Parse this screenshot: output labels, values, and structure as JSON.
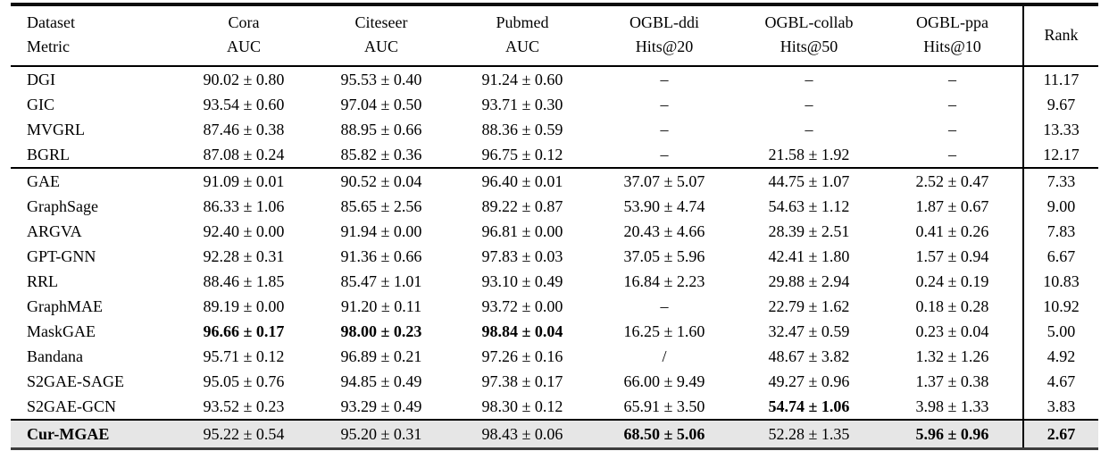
{
  "table": {
    "header": {
      "corner_line1": "Dataset",
      "corner_line2": "Metric",
      "columns": [
        {
          "dataset": "Cora",
          "metric": "AUC"
        },
        {
          "dataset": "Citeseer",
          "metric": "AUC"
        },
        {
          "dataset": "Pubmed",
          "metric": "AUC"
        },
        {
          "dataset": "OGBL-ddi",
          "metric": "Hits@20"
        },
        {
          "dataset": "OGBL-collab",
          "metric": "Hits@50"
        },
        {
          "dataset": "OGBL-ppa",
          "metric": "Hits@10"
        }
      ],
      "rank_label": "Rank"
    },
    "missing_marker": "–",
    "rows": [
      {
        "method": "DGI",
        "values": [
          "90.02 ± 0.80",
          "95.53 ± 0.40",
          "91.24 ± 0.60",
          "–",
          "–",
          "–"
        ],
        "rank": "11.17",
        "bold_cols": [],
        "method_bold": false,
        "rank_bold": false,
        "group_start": false,
        "shaded": false
      },
      {
        "method": "GIC",
        "values": [
          "93.54 ± 0.60",
          "97.04 ± 0.50",
          "93.71 ± 0.30",
          "–",
          "–",
          "–"
        ],
        "rank": "9.67",
        "bold_cols": [],
        "method_bold": false,
        "rank_bold": false,
        "group_start": false,
        "shaded": false
      },
      {
        "method": "MVGRL",
        "values": [
          "87.46 ± 0.38",
          "88.95 ± 0.66",
          "88.36 ± 0.59",
          "–",
          "–",
          "–"
        ],
        "rank": "13.33",
        "bold_cols": [],
        "method_bold": false,
        "rank_bold": false,
        "group_start": false,
        "shaded": false
      },
      {
        "method": "BGRL",
        "values": [
          "87.08 ± 0.24",
          "85.82 ± 0.36",
          "96.75 ± 0.12",
          "–",
          "21.58 ± 1.92",
          "–"
        ],
        "rank": "12.17",
        "bold_cols": [],
        "method_bold": false,
        "rank_bold": false,
        "group_start": false,
        "shaded": false
      },
      {
        "method": "GAE",
        "values": [
          "91.09 ± 0.01",
          "90.52 ± 0.04",
          "96.40 ± 0.01",
          "37.07 ± 5.07",
          "44.75 ± 1.07",
          "2.52 ± 0.47"
        ],
        "rank": "7.33",
        "bold_cols": [],
        "method_bold": false,
        "rank_bold": false,
        "group_start": true,
        "shaded": false
      },
      {
        "method": "GraphSage",
        "values": [
          "86.33 ± 1.06",
          "85.65 ± 2.56",
          "89.22 ± 0.87",
          "53.90 ± 4.74",
          "54.63 ± 1.12",
          "1.87 ± 0.67"
        ],
        "rank": "9.00",
        "bold_cols": [],
        "method_bold": false,
        "rank_bold": false,
        "group_start": false,
        "shaded": false
      },
      {
        "method": "ARGVA",
        "values": [
          "92.40 ± 0.00",
          "91.94 ± 0.00",
          "96.81 ± 0.00",
          "20.43 ± 4.66",
          "28.39 ± 2.51",
          "0.41 ± 0.26"
        ],
        "rank": "7.83",
        "bold_cols": [],
        "method_bold": false,
        "rank_bold": false,
        "group_start": false,
        "shaded": false
      },
      {
        "method": "GPT-GNN",
        "values": [
          "92.28 ± 0.31",
          "91.36 ± 0.66",
          "97.83 ± 0.03",
          "37.05 ± 5.96",
          "42.41 ± 1.80",
          "1.57 ± 0.94"
        ],
        "rank": "6.67",
        "bold_cols": [],
        "method_bold": false,
        "rank_bold": false,
        "group_start": false,
        "shaded": false
      },
      {
        "method": "RRL",
        "values": [
          "88.46 ± 1.85",
          "85.47 ± 1.01",
          "93.10 ± 0.49",
          "16.84 ± 2.23",
          "29.88 ± 2.94",
          "0.24 ± 0.19"
        ],
        "rank": "10.83",
        "bold_cols": [],
        "method_bold": false,
        "rank_bold": false,
        "group_start": false,
        "shaded": false
      },
      {
        "method": "GraphMAE",
        "values": [
          "89.19 ± 0.00",
          "91.20 ± 0.11",
          "93.72 ± 0.00",
          "–",
          "22.79 ± 1.62",
          "0.18 ± 0.28"
        ],
        "rank": "10.92",
        "bold_cols": [],
        "method_bold": false,
        "rank_bold": false,
        "group_start": false,
        "shaded": false
      },
      {
        "method": "MaskGAE",
        "values": [
          "96.66 ± 0.17",
          "98.00 ± 0.23",
          "98.84 ± 0.04",
          "16.25 ± 1.60",
          "32.47 ± 0.59",
          "0.23 ± 0.04"
        ],
        "rank": "5.00",
        "bold_cols": [
          0,
          1,
          2
        ],
        "method_bold": false,
        "rank_bold": false,
        "group_start": false,
        "shaded": false
      },
      {
        "method": "Bandana",
        "values": [
          "95.71 ± 0.12",
          "96.89 ± 0.21",
          "97.26 ± 0.16",
          "/",
          "48.67 ± 3.82",
          "1.32 ± 1.26"
        ],
        "rank": "4.92",
        "bold_cols": [],
        "method_bold": false,
        "rank_bold": false,
        "group_start": false,
        "shaded": false
      },
      {
        "method": "S2GAE-SAGE",
        "values": [
          "95.05 ± 0.76",
          "94.85 ± 0.49",
          "97.38 ± 0.17",
          "66.00 ± 9.49",
          "49.27 ± 0.96",
          "1.37 ± 0.38"
        ],
        "rank": "4.67",
        "bold_cols": [],
        "method_bold": false,
        "rank_bold": false,
        "group_start": false,
        "shaded": false
      },
      {
        "method": "S2GAE-GCN",
        "values": [
          "93.52 ± 0.23",
          "93.29 ± 0.49",
          "98.30 ± 0.12",
          "65.91 ± 3.50",
          "54.74 ± 1.06",
          "3.98 ± 1.33"
        ],
        "rank": "3.83",
        "bold_cols": [
          4
        ],
        "method_bold": false,
        "rank_bold": false,
        "group_start": false,
        "shaded": false
      },
      {
        "method": "Cur-MGAE",
        "values": [
          "95.22 ± 0.54",
          "95.20 ± 0.31",
          "98.43 ± 0.06",
          "68.50 ± 5.06",
          "52.28 ± 1.35",
          "5.96 ± 0.96"
        ],
        "rank": "2.67",
        "bold_cols": [
          3,
          5
        ],
        "method_bold": true,
        "rank_bold": true,
        "group_start": true,
        "shaded": true
      }
    ],
    "colors": {
      "highlight_row_bg": "#e6e6e6",
      "rule_color": "#000000",
      "text_color": "#000000"
    }
  }
}
